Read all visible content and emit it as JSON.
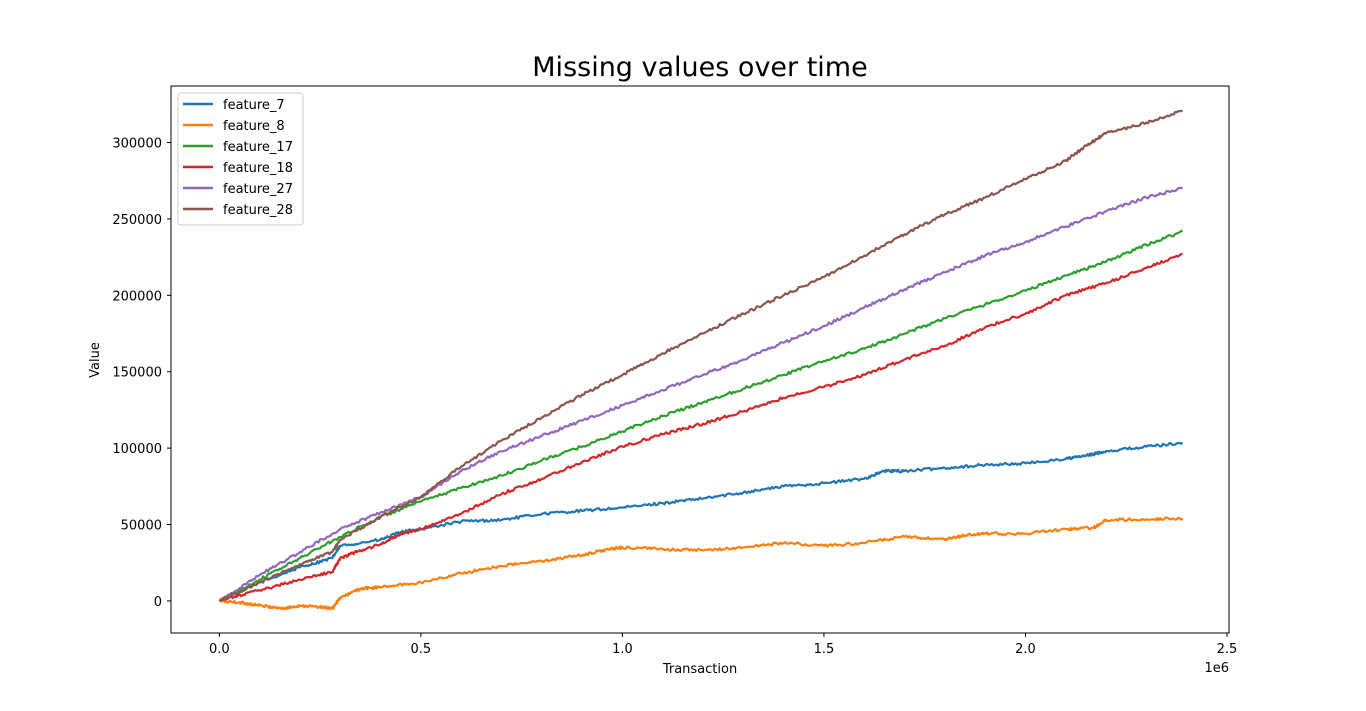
{
  "chart_data": {
    "type": "line",
    "title": "Missing values over time",
    "xlabel": "Transaction",
    "ylabel": "Value",
    "x_offset_label": "1e6",
    "xlim": [
      -120000,
      2505000
    ],
    "ylim": [
      -21000,
      337000
    ],
    "x_ticks": [
      0,
      500000,
      1000000,
      1500000,
      2000000,
      2500000
    ],
    "x_tick_labels": [
      "0.0",
      "0.5",
      "1.0",
      "1.5",
      "2.0",
      "2.5"
    ],
    "y_ticks": [
      0,
      50000,
      100000,
      150000,
      200000,
      250000,
      300000
    ],
    "y_tick_labels": [
      "0",
      "50000",
      "100000",
      "150000",
      "200000",
      "250000",
      "300000"
    ],
    "grid": false,
    "legend_position": "top-left",
    "series": [
      {
        "name": "feature_7",
        "color": "#1f77b4",
        "x": [
          0,
          100000,
          200000,
          280000,
          300000,
          400000,
          450000,
          500000,
          600000,
          700000,
          800000,
          900000,
          1000000,
          1100000,
          1200000,
          1300000,
          1400000,
          1500000,
          1600000,
          1650000,
          1700000,
          1800000,
          1900000,
          2000000,
          2100000,
          2150000,
          2200000,
          2300000,
          2390000
        ],
        "y": [
          0,
          12000,
          22000,
          28000,
          36000,
          40000,
          45000,
          47000,
          52000,
          53000,
          57000,
          59000,
          61000,
          64000,
          67000,
          71000,
          75000,
          77000,
          80000,
          85000,
          85000,
          87000,
          89000,
          90000,
          93000,
          95000,
          98000,
          101000,
          103500
        ]
      },
      {
        "name": "feature_8",
        "color": "#ff7f0e",
        "x": [
          0,
          50000,
          100000,
          160000,
          200000,
          250000,
          280000,
          300000,
          350000,
          400000,
          500000,
          600000,
          700000,
          800000,
          900000,
          950000,
          1000000,
          1100000,
          1200000,
          1300000,
          1400000,
          1500000,
          1600000,
          1700000,
          1800000,
          1850000,
          1900000,
          2000000,
          2100000,
          2170000,
          2200000,
          2300000,
          2390000
        ],
        "y": [
          0,
          -1000,
          -3000,
          -5000,
          -3000,
          -4000,
          -5000,
          2000,
          8000,
          9000,
          12000,
          18000,
          23000,
          26000,
          30000,
          33000,
          35000,
          34000,
          33000,
          35000,
          38000,
          36000,
          38000,
          42000,
          40000,
          43000,
          44000,
          44000,
          47000,
          48000,
          53000,
          53500,
          54000
        ]
      },
      {
        "name": "feature_17",
        "color": "#2ca02c",
        "x": [
          0,
          100000,
          200000,
          300000,
          400000,
          500000,
          600000,
          700000,
          800000,
          900000,
          1000000,
          1100000,
          1200000,
          1300000,
          1400000,
          1500000,
          1600000,
          1700000,
          1800000,
          1900000,
          2000000,
          2100000,
          2200000,
          2300000,
          2390000
        ],
        "y": [
          0,
          14000,
          28000,
          42000,
          55000,
          65000,
          74000,
          82000,
          92000,
          101000,
          111000,
          121000,
          130000,
          139000,
          148000,
          157000,
          165000,
          175000,
          185000,
          194000,
          203000,
          213000,
          222000,
          233000,
          242000
        ]
      },
      {
        "name": "feature_18",
        "color": "#d62728",
        "x": [
          0,
          100000,
          200000,
          280000,
          300000,
          350000,
          400000,
          450000,
          500000,
          600000,
          700000,
          800000,
          900000,
          1000000,
          1100000,
          1200000,
          1300000,
          1400000,
          1500000,
          1600000,
          1700000,
          1800000,
          1900000,
          2000000,
          2100000,
          2200000,
          2300000,
          2390000
        ],
        "y": [
          0,
          7000,
          14000,
          19000,
          28000,
          33000,
          37000,
          44000,
          47000,
          57000,
          70000,
          80000,
          91000,
          101000,
          109000,
          116000,
          124000,
          133000,
          140000,
          148000,
          158000,
          167000,
          179000,
          188000,
          200000,
          208000,
          218000,
          227000
        ]
      },
      {
        "name": "feature_27",
        "color": "#9467bd",
        "x": [
          0,
          100000,
          200000,
          300000,
          400000,
          500000,
          600000,
          700000,
          800000,
          900000,
          1000000,
          1100000,
          1200000,
          1300000,
          1400000,
          1500000,
          1600000,
          1700000,
          1800000,
          1900000,
          2000000,
          2100000,
          2200000,
          2300000,
          2390000
        ],
        "y": [
          0,
          17000,
          32000,
          47000,
          58000,
          68000,
          85000,
          98000,
          108000,
          118000,
          128000,
          138000,
          148000,
          158000,
          169000,
          180000,
          192000,
          204000,
          215000,
          226000,
          235000,
          245000,
          255000,
          264000,
          270000
        ]
      },
      {
        "name": "feature_28",
        "color": "#8c564b",
        "x": [
          0,
          100000,
          200000,
          280000,
          300000,
          400000,
          500000,
          600000,
          700000,
          800000,
          900000,
          1000000,
          1100000,
          1200000,
          1300000,
          1400000,
          1500000,
          1600000,
          1700000,
          1800000,
          1900000,
          2000000,
          2100000,
          2150000,
          2200000,
          2300000,
          2390000
        ],
        "y": [
          0,
          12000,
          24000,
          32000,
          40000,
          55000,
          68000,
          88000,
          105000,
          120000,
          135000,
          148000,
          162000,
          175000,
          188000,
          200000,
          212000,
          226000,
          240000,
          253000,
          264000,
          276000,
          288000,
          298000,
          306000,
          313000,
          321000
        ]
      }
    ]
  }
}
